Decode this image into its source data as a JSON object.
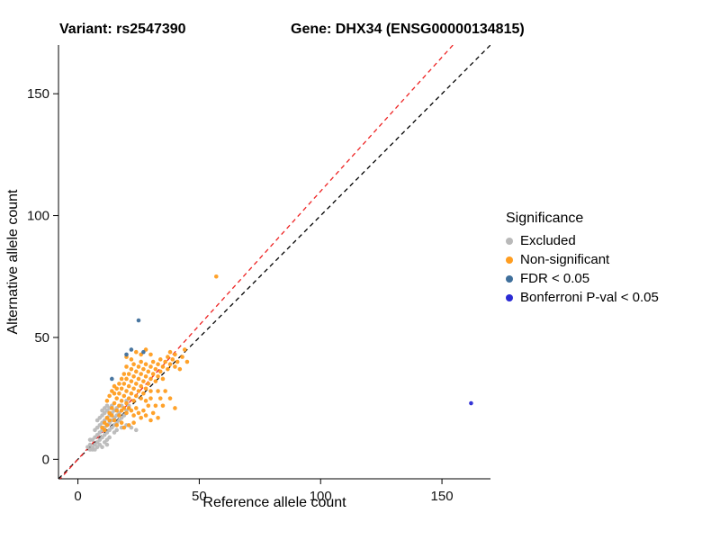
{
  "chart_data": {
    "type": "scatter",
    "title_left": "Variant: rs2547390",
    "title_right": "Gene: DHX34 (ENSG00000134815)",
    "xlabel": "Reference allele count",
    "ylabel": "Alternative allele count",
    "xlim": [
      -8,
      170
    ],
    "ylim": [
      -8,
      170
    ],
    "x_ticks": [
      0,
      50,
      100,
      150
    ],
    "y_ticks": [
      0,
      50,
      100,
      150
    ],
    "grid": false,
    "legend_position": "right",
    "legend_title": "Significance",
    "lines": [
      {
        "name": "identity-line",
        "color": "#000000",
        "slope": 1.0,
        "intercept": 0,
        "style": "dashed"
      },
      {
        "name": "ratio-line",
        "color": "#ee2222",
        "slope": 1.1,
        "intercept": 0,
        "style": "dashed"
      }
    ],
    "series": [
      {
        "name": "Excluded",
        "color": "#b9b9b9",
        "points": [
          [
            4,
            5
          ],
          [
            5,
            4
          ],
          [
            5,
            6
          ],
          [
            5,
            8
          ],
          [
            6,
            4
          ],
          [
            6,
            5
          ],
          [
            6,
            8
          ],
          [
            7,
            4
          ],
          [
            7,
            6
          ],
          [
            7,
            9
          ],
          [
            7,
            12
          ],
          [
            8,
            5
          ],
          [
            8,
            7
          ],
          [
            8,
            10
          ],
          [
            8,
            13
          ],
          [
            8,
            16
          ],
          [
            9,
            6
          ],
          [
            9,
            8
          ],
          [
            9,
            11
          ],
          [
            9,
            14
          ],
          [
            9,
            17
          ],
          [
            10,
            5
          ],
          [
            10,
            9
          ],
          [
            10,
            12
          ],
          [
            10,
            15
          ],
          [
            10,
            18
          ],
          [
            10,
            20
          ],
          [
            11,
            7
          ],
          [
            11,
            10
          ],
          [
            11,
            13
          ],
          [
            11,
            16
          ],
          [
            11,
            19
          ],
          [
            11,
            21
          ],
          [
            12,
            6
          ],
          [
            12,
            8
          ],
          [
            12,
            11
          ],
          [
            12,
            14
          ],
          [
            12,
            17
          ],
          [
            12,
            20
          ],
          [
            12,
            22
          ],
          [
            13,
            9
          ],
          [
            13,
            12
          ],
          [
            13,
            15
          ],
          [
            13,
            18
          ],
          [
            13,
            21
          ],
          [
            14,
            13
          ],
          [
            14,
            16
          ],
          [
            14,
            19
          ],
          [
            14,
            22
          ],
          [
            15,
            11
          ],
          [
            15,
            14
          ],
          [
            15,
            17
          ],
          [
            15,
            20
          ],
          [
            16,
            12
          ],
          [
            16,
            15
          ],
          [
            16,
            18
          ],
          [
            16,
            21
          ],
          [
            17,
            16
          ],
          [
            17,
            19
          ],
          [
            18,
            13
          ],
          [
            18,
            17
          ],
          [
            18,
            22
          ],
          [
            19,
            18
          ],
          [
            20,
            14
          ],
          [
            20,
            20
          ],
          [
            20,
            24
          ],
          [
            21,
            22
          ],
          [
            22,
            13
          ],
          [
            24,
            12
          ]
        ]
      },
      {
        "name": "Non-significant",
        "color": "#ff9d20",
        "points": [
          [
            10,
            13
          ],
          [
            11,
            12
          ],
          [
            11,
            15
          ],
          [
            12,
            14
          ],
          [
            12,
            17
          ],
          [
            12,
            24
          ],
          [
            13,
            16
          ],
          [
            13,
            19
          ],
          [
            13,
            26
          ],
          [
            14,
            18
          ],
          [
            14,
            21
          ],
          [
            14,
            28
          ],
          [
            15,
            16
          ],
          [
            15,
            23
          ],
          [
            15,
            27
          ],
          [
            15,
            30
          ],
          [
            16,
            14
          ],
          [
            16,
            20
          ],
          [
            16,
            25
          ],
          [
            16,
            29
          ],
          [
            17,
            18
          ],
          [
            17,
            22
          ],
          [
            17,
            27
          ],
          [
            17,
            31
          ],
          [
            18,
            15
          ],
          [
            18,
            20
          ],
          [
            18,
            24
          ],
          [
            18,
            29
          ],
          [
            18,
            33
          ],
          [
            19,
            13
          ],
          [
            19,
            21
          ],
          [
            19,
            26
          ],
          [
            19,
            31
          ],
          [
            19,
            35
          ],
          [
            20,
            19
          ],
          [
            20,
            23
          ],
          [
            20,
            28
          ],
          [
            20,
            33
          ],
          [
            20,
            38
          ],
          [
            20,
            42
          ],
          [
            21,
            14
          ],
          [
            21,
            21
          ],
          [
            21,
            25
          ],
          [
            21,
            30
          ],
          [
            21,
            35
          ],
          [
            22,
            20
          ],
          [
            22,
            27
          ],
          [
            22,
            32
          ],
          [
            22,
            37
          ],
          [
            22,
            41
          ],
          [
            23,
            15
          ],
          [
            23,
            18
          ],
          [
            23,
            24
          ],
          [
            23,
            29
          ],
          [
            23,
            34
          ],
          [
            23,
            39
          ],
          [
            24,
            21
          ],
          [
            24,
            26
          ],
          [
            24,
            31
          ],
          [
            24,
            36
          ],
          [
            24,
            44
          ],
          [
            25,
            19
          ],
          [
            25,
            28
          ],
          [
            25,
            33
          ],
          [
            25,
            38
          ],
          [
            26,
            17
          ],
          [
            26,
            25
          ],
          [
            26,
            30
          ],
          [
            26,
            35
          ],
          [
            26,
            40
          ],
          [
            26,
            43
          ],
          [
            27,
            20
          ],
          [
            27,
            27
          ],
          [
            27,
            32
          ],
          [
            27,
            37
          ],
          [
            28,
            18
          ],
          [
            28,
            24
          ],
          [
            28,
            29
          ],
          [
            28,
            34
          ],
          [
            28,
            39
          ],
          [
            28,
            45
          ],
          [
            29,
            22
          ],
          [
            29,
            31
          ],
          [
            29,
            36
          ],
          [
            30,
            16
          ],
          [
            30,
            25
          ],
          [
            30,
            28
          ],
          [
            30,
            33
          ],
          [
            30,
            38
          ],
          [
            30,
            43
          ],
          [
            31,
            19
          ],
          [
            31,
            35
          ],
          [
            31,
            40
          ],
          [
            32,
            22
          ],
          [
            32,
            32
          ],
          [
            32,
            37
          ],
          [
            33,
            17
          ],
          [
            33,
            28
          ],
          [
            33,
            34
          ],
          [
            33,
            39
          ],
          [
            34,
            25
          ],
          [
            34,
            36
          ],
          [
            34,
            41
          ],
          [
            35,
            22
          ],
          [
            35,
            33
          ],
          [
            35,
            38
          ],
          [
            36,
            28
          ],
          [
            36,
            40
          ],
          [
            37,
            37
          ],
          [
            37,
            42
          ],
          [
            38,
            25
          ],
          [
            38,
            39
          ],
          [
            38,
            44
          ],
          [
            39,
            41
          ],
          [
            40,
            21
          ],
          [
            40,
            38
          ],
          [
            40,
            43
          ],
          [
            41,
            40
          ],
          [
            42,
            37
          ],
          [
            43,
            42
          ],
          [
            44,
            45
          ],
          [
            45,
            40
          ],
          [
            57,
            75
          ]
        ]
      },
      {
        "name": "FDR < 0.05",
        "color": "#3f6f9b",
        "points": [
          [
            14,
            33
          ],
          [
            20,
            43
          ],
          [
            22,
            45
          ],
          [
            25,
            57
          ],
          [
            27,
            44
          ]
        ]
      },
      {
        "name": "Bonferroni P-val < 0.05",
        "color": "#2a2ad4",
        "points": [
          [
            162,
            23
          ]
        ]
      }
    ]
  }
}
